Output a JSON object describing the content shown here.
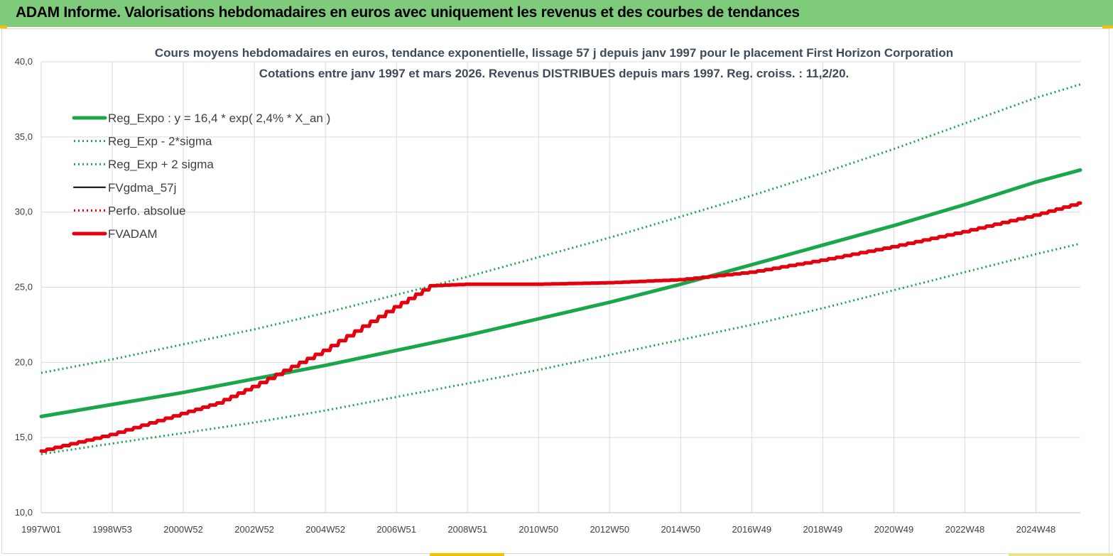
{
  "header": {
    "title": "ADAM Informe. Valorisations hebdomadaires en euros avec uniquement les revenus et des courbes de tendances"
  },
  "colors": {
    "header_bg": "#7ecb7b",
    "reg_green": "#1aa64a",
    "adam_red": "#e3000f",
    "gdma_black": "#000000"
  },
  "chart_data": {
    "type": "line",
    "title_line1": "Cours moyens hebdomadaires en euros, tendance exponentielle, lissage 57 j depuis janv 1997 pour le placement First Horizon Corporation",
    "title_line2": "Cotations entre janv 1997 et mars 2026. Revenus DISTRIBUES depuis mars 1997. Reg. croiss. : 11,2/20.",
    "x_range": [
      1997.0,
      2026.25
    ],
    "ylim": [
      10,
      40
    ],
    "grid": true,
    "legend_position": "top-left",
    "x_ticks": [
      {
        "label": "1997W01",
        "x": 1997.0
      },
      {
        "label": "1998W53",
        "x": 1999.0
      },
      {
        "label": "2000W52",
        "x": 2001.0
      },
      {
        "label": "2002W52",
        "x": 2003.0
      },
      {
        "label": "2004W52",
        "x": 2005.0
      },
      {
        "label": "2006W51",
        "x": 2007.0
      },
      {
        "label": "2008W51",
        "x": 2009.0
      },
      {
        "label": "2010W50",
        "x": 2011.0
      },
      {
        "label": "2012W50",
        "x": 2013.0
      },
      {
        "label": "2014W50",
        "x": 2015.0
      },
      {
        "label": "2016W49",
        "x": 2017.0
      },
      {
        "label": "2018W49",
        "x": 2019.0
      },
      {
        "label": "2020W49",
        "x": 2021.0
      },
      {
        "label": "2022W48",
        "x": 2023.0
      },
      {
        "label": "2024W48",
        "x": 2025.0
      }
    ],
    "y_ticks": [
      {
        "label": "10,0",
        "y": 10
      },
      {
        "label": "15,0",
        "y": 15
      },
      {
        "label": "20,0",
        "y": 20
      },
      {
        "label": "25,0",
        "y": 25
      },
      {
        "label": "30,0",
        "y": 30
      },
      {
        "label": "35,0",
        "y": 35
      },
      {
        "label": "40,0",
        "y": 40
      }
    ],
    "series": [
      {
        "name": "Reg_Expo : y = 16,4 * exp( 2,4% *  X_an )",
        "style": "solid-thick",
        "color": "#1aa64a",
        "x": [
          1997.0,
          1999.0,
          2001.0,
          2003.0,
          2005.0,
          2007.0,
          2009.0,
          2011.0,
          2013.0,
          2015.0,
          2017.0,
          2019.0,
          2021.0,
          2023.0,
          2025.0,
          2026.25
        ],
        "y": [
          16.4,
          17.2,
          18.0,
          18.9,
          19.8,
          20.8,
          21.8,
          22.9,
          24.0,
          25.2,
          26.5,
          27.8,
          29.1,
          30.5,
          32.0,
          32.8
        ]
      },
      {
        "name": "Reg_Exp - 2*sigma",
        "style": "dotted",
        "color": "#1aa64a",
        "x": [
          1997.0,
          1999.0,
          2001.0,
          2003.0,
          2005.0,
          2007.0,
          2009.0,
          2011.0,
          2013.0,
          2015.0,
          2017.0,
          2019.0,
          2021.0,
          2023.0,
          2025.0,
          2026.25
        ],
        "y": [
          13.9,
          14.6,
          15.3,
          16.0,
          16.8,
          17.7,
          18.6,
          19.5,
          20.5,
          21.5,
          22.5,
          23.6,
          24.8,
          26.0,
          27.2,
          27.9
        ]
      },
      {
        "name": "Reg_Exp + 2 sigma",
        "style": "dotted",
        "color": "#1aa64a",
        "x": [
          1997.0,
          1999.0,
          2001.0,
          2003.0,
          2005.0,
          2007.0,
          2009.0,
          2011.0,
          2013.0,
          2015.0,
          2017.0,
          2019.0,
          2021.0,
          2023.0,
          2025.0,
          2026.25
        ],
        "y": [
          19.3,
          20.2,
          21.2,
          22.2,
          23.3,
          24.5,
          25.7,
          27.0,
          28.3,
          29.7,
          31.1,
          32.6,
          34.2,
          35.9,
          37.6,
          38.5
        ]
      },
      {
        "name": "FVgdma_57j",
        "style": "solid",
        "color": "#000000",
        "x": [
          1997.0,
          1999.0,
          2001.0,
          2002.0,
          2003.0,
          2005.0,
          2007.0,
          2008.0,
          2009.0,
          2011.0,
          2013.0,
          2015.0,
          2017.0,
          2019.0,
          2021.0,
          2023.0,
          2025.0,
          2026.25
        ],
        "y": [
          14.1,
          15.2,
          16.6,
          17.3,
          18.4,
          20.8,
          23.7,
          25.1,
          25.2,
          25.2,
          25.3,
          25.5,
          26.0,
          26.8,
          27.7,
          28.7,
          29.8,
          30.6
        ]
      },
      {
        "name": "Perfo. absolue",
        "style": "dotted",
        "color": "#e3000f",
        "x": [
          1997.0,
          1999.0,
          2001.0,
          2002.0,
          2003.0,
          2005.0,
          2007.0,
          2008.0,
          2009.0,
          2011.0,
          2013.0,
          2015.0,
          2017.0,
          2019.0,
          2021.0,
          2023.0,
          2025.0,
          2026.25
        ],
        "y": [
          14.1,
          15.2,
          16.6,
          17.3,
          18.4,
          20.8,
          23.7,
          25.1,
          25.2,
          25.2,
          25.3,
          25.5,
          26.0,
          26.8,
          27.7,
          28.7,
          29.8,
          30.6
        ]
      },
      {
        "name": "FVADAM",
        "style": "solid-thick",
        "color": "#e3000f",
        "x": [
          1997.0,
          1999.0,
          2001.0,
          2002.0,
          2003.0,
          2005.0,
          2007.0,
          2008.0,
          2009.0,
          2011.0,
          2013.0,
          2015.0,
          2017.0,
          2019.0,
          2021.0,
          2023.0,
          2025.0,
          2026.25
        ],
        "y": [
          14.1,
          15.2,
          16.6,
          17.3,
          18.4,
          20.8,
          23.7,
          25.1,
          25.2,
          25.2,
          25.3,
          25.5,
          26.0,
          26.8,
          27.7,
          28.7,
          29.8,
          30.6
        ]
      }
    ]
  }
}
